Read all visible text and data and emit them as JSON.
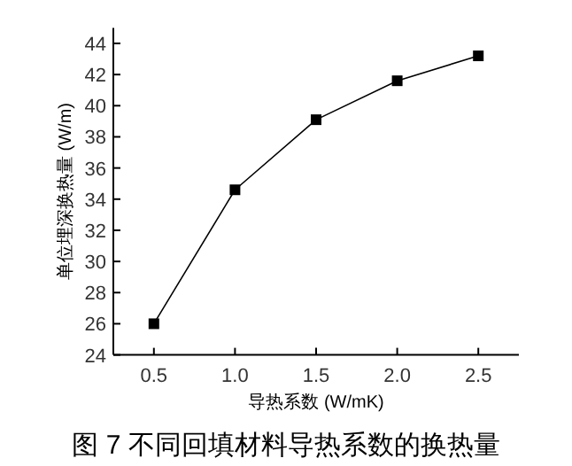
{
  "chart_data": {
    "type": "line",
    "title": "图 7 不同回填材料导热系数的换热量",
    "xlabel": "导热系数 (W/mK)",
    "ylabel": "单位埋深换热量 (W/m)",
    "x": [
      0.5,
      1.0,
      1.5,
      2.0,
      2.5
    ],
    "values": [
      26.0,
      34.6,
      39.1,
      41.6,
      43.2
    ],
    "color": "#000000",
    "marker": "square",
    "line_style": "solid",
    "xlim": [
      0.25,
      2.75
    ],
    "ylim": [
      24,
      45
    ],
    "xticks": [
      {
        "value": 0.5,
        "label": "0.5"
      },
      {
        "value": 1.0,
        "label": "1.0"
      },
      {
        "value": 1.5,
        "label": "1.5"
      },
      {
        "value": 2.0,
        "label": "2.0"
      },
      {
        "value": 2.5,
        "label": "2.5"
      }
    ],
    "yticks": [
      24,
      26,
      28,
      30,
      32,
      34,
      36,
      38,
      40,
      42,
      44
    ]
  }
}
